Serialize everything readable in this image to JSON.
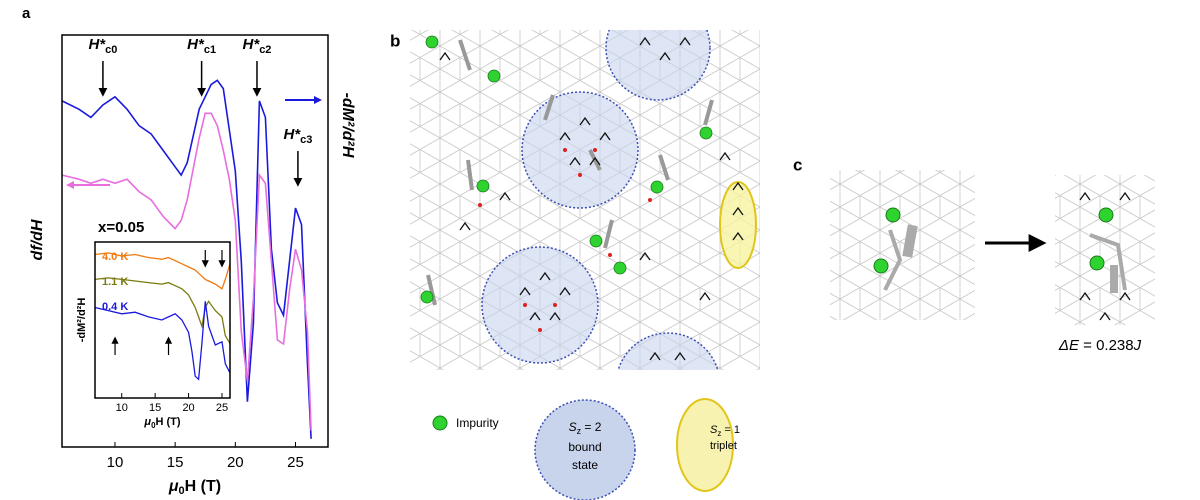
{
  "chart_data": [
    {
      "type": "line",
      "panel": "a",
      "x_label": [
        "μ",
        "0",
        "H (T)"
      ],
      "y_label": "df/dH",
      "y2_label": "-dM²/d²H",
      "x": [
        5.6,
        7,
        8,
        9,
        10,
        11,
        12,
        13,
        14,
        15,
        15.5,
        16,
        17,
        17.5,
        18,
        18.5,
        19,
        19.5,
        20,
        20.5,
        21,
        21.5,
        22,
        22.5,
        23,
        23.5,
        24,
        24.5,
        25,
        25.5,
        26,
        26.3
      ],
      "series": [
        {
          "name": "df/dH",
          "color": "#1a1adc",
          "values": [
            8.4,
            8.2,
            8.0,
            8.3,
            8.5,
            8.2,
            7.8,
            7.6,
            7.2,
            6.8,
            6.6,
            6.9,
            8.2,
            8.5,
            8.8,
            8.9,
            8.7,
            7.7,
            6.7,
            4.5,
            1.1,
            3.0,
            8.4,
            8.0,
            4.8,
            3.5,
            3.2,
            4.5,
            5.8,
            5.4,
            2.0,
            0.2
          ]
        },
        {
          "name": "-dM²/d²H",
          "color": "#e86ee0",
          "axis": "y2",
          "values": [
            6.6,
            6.5,
            6.4,
            6.5,
            6.4,
            6.5,
            6.2,
            6.0,
            5.6,
            5.3,
            5.5,
            6.0,
            7.5,
            8.1,
            8.1,
            7.8,
            7.2,
            6.5,
            5.5,
            2.8,
            1.6,
            3.6,
            6.6,
            6.4,
            4.5,
            2.6,
            2.5,
            3.8,
            4.8,
            4.3,
            2.8,
            0.4
          ]
        }
      ],
      "xlim": [
        5.6,
        27.7
      ],
      "xticks": [
        10,
        15,
        20,
        25
      ],
      "ylim": [
        0,
        10
      ],
      "y2lim": [
        0,
        10
      ],
      "annotations": [
        {
          "text": "H*",
          "sub": "c0",
          "x": 9
        },
        {
          "text": "H*",
          "sub": "c1",
          "x": 17.2
        },
        {
          "text": "H*",
          "sub": "c2",
          "x": 21.8
        },
        {
          "text": "H*",
          "sub": "c3",
          "x": 25.2
        }
      ],
      "note": "x=0.05"
    },
    {
      "type": "line",
      "inset": true,
      "x_label": [
        "μ",
        "0",
        "H (T)"
      ],
      "y_label": "-dM²/d²H",
      "x": [
        6,
        8,
        10,
        12,
        14,
        16,
        17,
        18,
        19,
        20,
        20.5,
        21,
        21.5,
        22,
        22.5,
        23,
        24,
        25,
        25.5,
        26.2
      ],
      "series": [
        {
          "name": "4.0 K",
          "color": "#f07a10",
          "values": [
            9.2,
            9.3,
            9.1,
            9.2,
            9.0,
            8.9,
            9.0,
            8.8,
            8.6,
            8.4,
            8.3,
            8.2,
            8.0,
            7.8,
            7.6,
            7.5,
            7.3,
            7.0,
            7.6,
            8.6
          ]
        },
        {
          "name": "1.1 K",
          "color": "#7a7a10",
          "values": [
            7.6,
            7.7,
            7.6,
            7.5,
            7.4,
            7.3,
            7.4,
            7.2,
            7.0,
            6.6,
            6.2,
            5.8,
            5.2,
            4.6,
            5.8,
            6.2,
            5.6,
            5.2,
            4.0,
            3.5
          ]
        },
        {
          "name": "0.4 K",
          "color": "#1a1adc",
          "values": [
            5.8,
            5.6,
            5.4,
            5.5,
            5.2,
            5.0,
            5.2,
            5.4,
            5.0,
            4.2,
            3.0,
            1.4,
            1.2,
            3.5,
            6.2,
            4.6,
            3.4,
            3.6,
            2.2,
            1.6
          ]
        }
      ],
      "xlim": [
        6,
        26.2
      ],
      "xticks": [
        10,
        15,
        20,
        25
      ],
      "ylim": [
        0,
        10
      ],
      "arrows": [
        {
          "x": 9,
          "dir": "up"
        },
        {
          "x": 17,
          "dir": "up"
        },
        {
          "x": 22.5,
          "dir": "down"
        },
        {
          "x": 25,
          "dir": "down"
        }
      ]
    }
  ],
  "panel_b": {
    "label": "b",
    "legend": {
      "impurity": "Impurity",
      "bound_state": [
        "S",
        "z",
        " = 2",
        "bound",
        "state"
      ],
      "triplet": [
        "S",
        "z",
        " = 1",
        "triplet"
      ]
    }
  },
  "panel_c": {
    "label": "c",
    "energy": [
      "ΔE",
      " = 0.238",
      "J"
    ]
  }
}
